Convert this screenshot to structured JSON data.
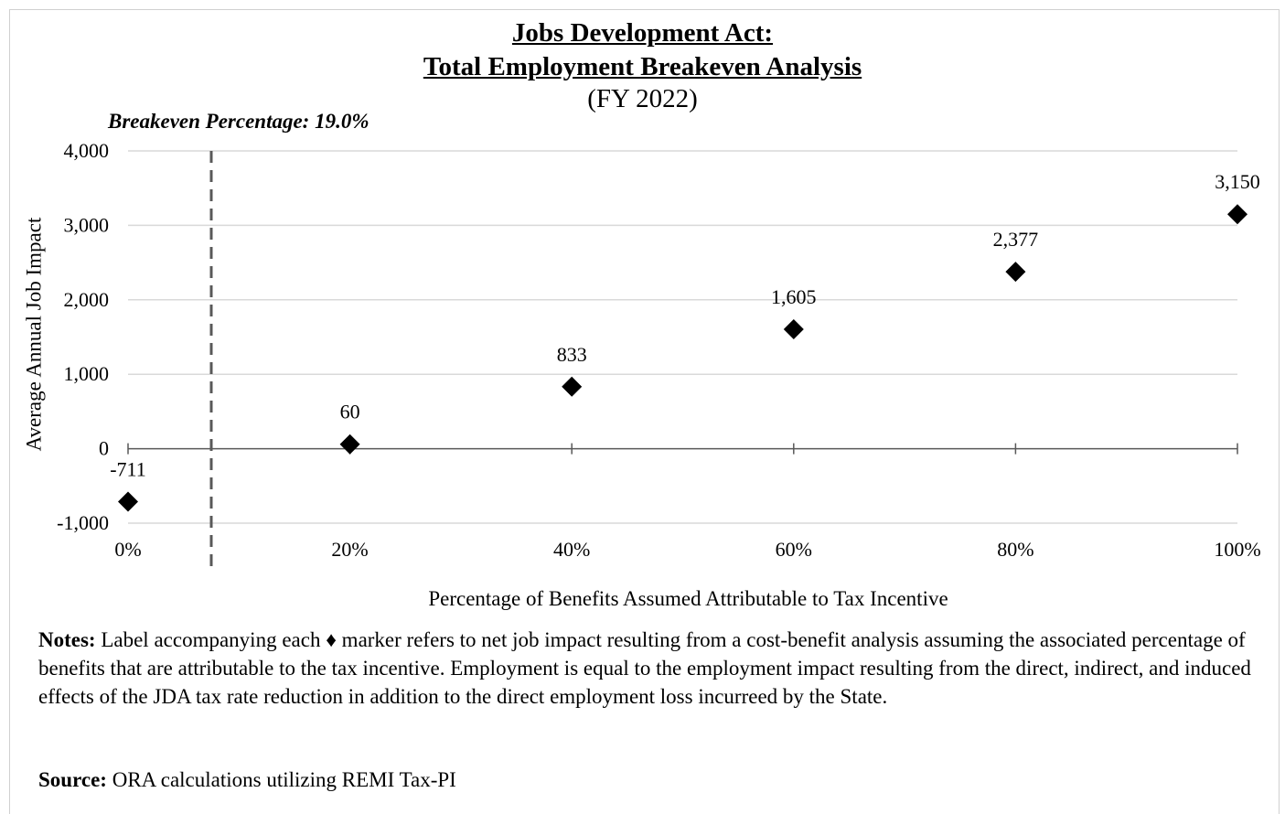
{
  "title_line1": "Jobs Development Act:",
  "title_line2": "Total Employment Breakeven Analysis",
  "subtitle": "(FY 2022)",
  "breakeven_label": "Breakeven Percentage: 19.0%",
  "notes_label": "Notes:",
  "notes_text": "Label accompanying each ♦ marker refers to net job impact resulting from a cost-benefit analysis assuming the associated percentage of benefits that are attributable to the tax incentive. Employment is equal to the employment impact resulting from the direct, indirect, and induced effects of the JDA tax rate reduction in addition to the direct employment loss incurreed by the State.",
  "source_label": "Source:",
  "source_text": "ORA calculations utilizing REMI Tax-PI",
  "chart_data": {
    "type": "scatter",
    "title": "Jobs Development Act: Total Employment Breakeven Analysis",
    "subtitle": "(FY 2022)",
    "xlabel": "Percentage of Benefits Assumed Attributable to Tax Incentive",
    "ylabel": "Average Annual Job Impact",
    "x": [
      0,
      20,
      40,
      60,
      80,
      100
    ],
    "values": [
      -711,
      60,
      833,
      1605,
      2377,
      3150
    ],
    "point_labels": [
      "-711",
      "60",
      "833",
      "1,605",
      "2,377",
      "3,150"
    ],
    "x_tick_labels": [
      "0%",
      "20%",
      "40%",
      "60%",
      "80%",
      "100%"
    ],
    "y_ticks": [
      -1000,
      0,
      1000,
      2000,
      3000,
      4000
    ],
    "y_tick_labels": [
      "-1,000",
      "0",
      "1,000",
      "2,000",
      "3,000",
      "4,000"
    ],
    "xlim": [
      0,
      100
    ],
    "ylim": [
      -1000,
      4000
    ],
    "grid": true,
    "breakeven_x": 19.0,
    "marker": "diamond",
    "colors": {
      "marker": "#000000",
      "grid": "#d9d9d9",
      "axis": "#595959",
      "breakeven_line": "#595959"
    }
  }
}
